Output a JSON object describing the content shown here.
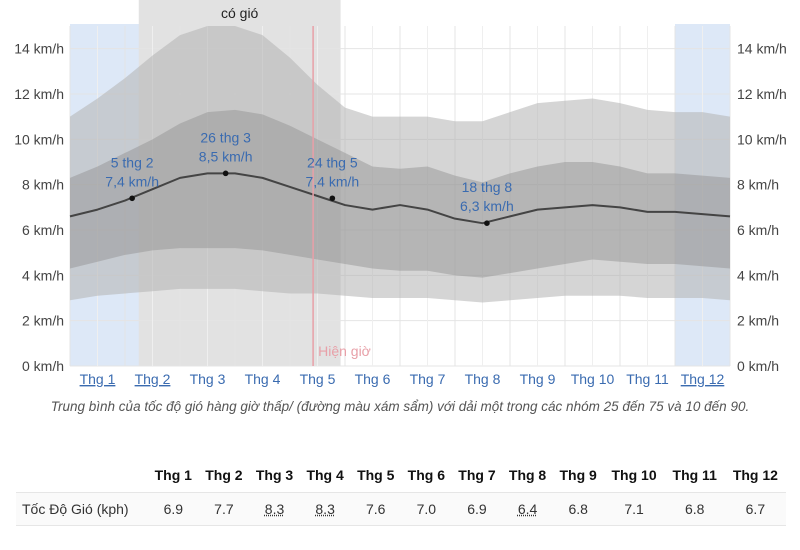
{
  "chart_data": {
    "type": "area",
    "y_unit_format": "{v} km/h",
    "ylim": [
      0,
      15
    ],
    "y_ticks": [
      0,
      2,
      4,
      6,
      8,
      10,
      12,
      14
    ],
    "x_domain": [
      0,
      12
    ],
    "month_labels": [
      "Thg 1",
      "Thg 2",
      "Thg 3",
      "Thg 4",
      "Thg 5",
      "Thg 6",
      "Thg 7",
      "Thg 8",
      "Thg 9",
      "Thg 10",
      "Thg 11",
      "Thg 12"
    ],
    "month_label_underlined": [
      true,
      true,
      false,
      false,
      false,
      false,
      false,
      false,
      false,
      false,
      false,
      true
    ],
    "grid": true,
    "series": [
      {
        "role": "mean",
        "x": [
          0,
          0.5,
          1,
          1.5,
          2,
          2.5,
          3,
          3.5,
          4,
          4.5,
          5,
          5.5,
          6,
          6.5,
          7,
          7.5,
          8,
          8.5,
          9,
          9.5,
          10,
          10.5,
          11,
          11.5,
          12
        ],
        "values": [
          6.6,
          6.9,
          7.3,
          7.8,
          8.3,
          8.5,
          8.5,
          8.3,
          7.9,
          7.5,
          7.1,
          6.9,
          7.1,
          6.9,
          6.5,
          6.3,
          6.6,
          6.9,
          7.0,
          7.1,
          7.0,
          6.8,
          6.8,
          6.7,
          6.6
        ]
      },
      {
        "role": "band_25_75",
        "lower": [
          4.3,
          4.6,
          4.9,
          5.1,
          5.2,
          5.2,
          5.2,
          5.1,
          4.9,
          4.7,
          4.5,
          4.3,
          4.2,
          4.2,
          4.0,
          3.9,
          4.1,
          4.3,
          4.5,
          4.7,
          4.6,
          4.5,
          4.5,
          4.4,
          4.3
        ],
        "upper": [
          8.3,
          8.8,
          9.4,
          10.0,
          10.7,
          11.2,
          11.3,
          11.1,
          10.6,
          10.0,
          9.4,
          8.8,
          8.7,
          8.8,
          8.4,
          8.1,
          8.5,
          8.8,
          9.0,
          9.0,
          8.8,
          8.5,
          8.5,
          8.4,
          8.3
        ]
      },
      {
        "role": "band_10_90",
        "lower": [
          2.9,
          3.1,
          3.2,
          3.3,
          3.4,
          3.4,
          3.4,
          3.3,
          3.2,
          3.2,
          3.1,
          3.0,
          3.0,
          3.0,
          2.9,
          2.8,
          2.9,
          3.0,
          3.1,
          3.1,
          3.1,
          3.0,
          3.0,
          3.0,
          2.9
        ],
        "upper": [
          11.0,
          11.8,
          12.7,
          13.7,
          14.6,
          15.0,
          15.0,
          14.6,
          13.6,
          12.4,
          11.4,
          11.0,
          11.0,
          11.0,
          10.8,
          10.8,
          11.2,
          11.6,
          11.7,
          11.8,
          11.6,
          11.3,
          11.2,
          11.2,
          11.0
        ]
      }
    ],
    "shaded_periods": [
      {
        "x0": 0,
        "x1": 2,
        "color": "#dde8f7"
      },
      {
        "x0": 11,
        "x1": 12,
        "color": "#dde8f7"
      },
      {
        "x0": 1.25,
        "x1": 4.92,
        "color": "#e2e2e2",
        "label": "có gió"
      }
    ],
    "now_marker": {
      "x": 4.42,
      "label": "Hiện giờ",
      "color": "#e8a0a8"
    },
    "annotations": [
      {
        "x": 1.13,
        "y": 7.4,
        "date": "5 thg 2",
        "value": "7,4 km/h"
      },
      {
        "x": 2.83,
        "y": 8.5,
        "date": "26 thg 3",
        "value": "8,5 km/h"
      },
      {
        "x": 4.77,
        "y": 7.4,
        "date": "24 thg 5",
        "value": "7,4 km/h"
      },
      {
        "x": 7.58,
        "y": 6.3,
        "date": "18 thg 8",
        "value": "6,3 km/h"
      }
    ],
    "colors": {
      "band_outer": "#b3b3b3",
      "band_inner": "#8f8f8f",
      "mean_line": "#444444",
      "annotation_text": "#3a6bb0"
    },
    "caption": "Trung bình của tốc độ gió hàng giờ thấp/ (đường màu xám sẩm) với dải một trong các nhóm 25 đến 75 và 10 đến 90."
  },
  "table": {
    "row_label": "Tốc Độ Gió (kph)",
    "headers": [
      "Thg 1",
      "Thg 2",
      "Thg 3",
      "Thg 4",
      "Thg 5",
      "Thg 6",
      "Thg 7",
      "Thg 8",
      "Thg 9",
      "Thg 10",
      "Thg 11",
      "Thg 12"
    ],
    "values": [
      "6.9",
      "7.7",
      "8.3",
      "8.3",
      "7.6",
      "7.0",
      "6.9",
      "6.4",
      "6.8",
      "7.1",
      "6.8",
      "6.7"
    ],
    "underlined": [
      false,
      false,
      true,
      true,
      false,
      false,
      false,
      true,
      false,
      false,
      false,
      false
    ]
  }
}
